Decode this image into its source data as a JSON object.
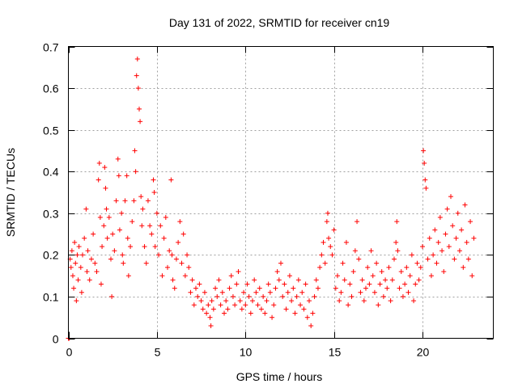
{
  "chart_data": {
    "type": "scatter",
    "title": "Day 131 of 2022, SRMTID for receiver cn19",
    "xlabel": "GPS time / hours",
    "ylabel": "SRMTID / TECUs",
    "xlim": [
      0,
      24
    ],
    "ylim": [
      0,
      0.7
    ],
    "xticks": [
      0,
      5,
      10,
      15,
      20
    ],
    "yticks": [
      0,
      0.1,
      0.2,
      0.3,
      0.4,
      0.5,
      0.6,
      0.7
    ],
    "xtick_labels": [
      "0",
      "5",
      "10",
      "15",
      "20"
    ],
    "ytick_labels": [
      "0",
      "0.1",
      "0.2",
      "0.3",
      "0.4",
      "0.5",
      "0.6",
      "0.7"
    ],
    "grid": true,
    "marker": "+",
    "color": "#ff0000",
    "series": [
      {
        "name": "SRMTID",
        "points": [
          [
            0.0,
            0.0
          ],
          [
            0.05,
            0.0
          ],
          [
            0.1,
            0.19
          ],
          [
            0.15,
            0.17
          ],
          [
            0.2,
            0.21
          ],
          [
            0.25,
            0.15
          ],
          [
            0.3,
            0.12
          ],
          [
            0.35,
            0.23
          ],
          [
            0.4,
            0.18
          ],
          [
            0.45,
            0.09
          ],
          [
            0.5,
            0.2
          ],
          [
            0.55,
            0.14
          ],
          [
            0.6,
            0.22
          ],
          [
            0.7,
            0.17
          ],
          [
            0.75,
            0.11
          ],
          [
            0.8,
            0.2
          ],
          [
            0.9,
            0.24
          ],
          [
            1.0,
            0.31
          ],
          [
            1.05,
            0.16
          ],
          [
            1.1,
            0.21
          ],
          [
            1.2,
            0.14
          ],
          [
            1.3,
            0.19
          ],
          [
            1.4,
            0.25
          ],
          [
            1.5,
            0.18
          ],
          [
            1.6,
            0.16
          ],
          [
            1.7,
            0.38
          ],
          [
            1.75,
            0.42
          ],
          [
            1.8,
            0.29
          ],
          [
            1.85,
            0.13
          ],
          [
            1.9,
            0.22
          ],
          [
            2.0,
            0.27
          ],
          [
            2.05,
            0.41
          ],
          [
            2.1,
            0.36
          ],
          [
            2.15,
            0.31
          ],
          [
            2.2,
            0.24
          ],
          [
            2.3,
            0.29
          ],
          [
            2.4,
            0.19
          ],
          [
            2.45,
            0.1
          ],
          [
            2.5,
            0.25
          ],
          [
            2.6,
            0.21
          ],
          [
            2.7,
            0.33
          ],
          [
            2.8,
            0.43
          ],
          [
            2.85,
            0.39
          ],
          [
            2.9,
            0.26
          ],
          [
            3.0,
            0.3
          ],
          [
            3.05,
            0.2
          ],
          [
            3.1,
            0.18
          ],
          [
            3.2,
            0.33
          ],
          [
            3.3,
            0.39
          ],
          [
            3.35,
            0.24
          ],
          [
            3.4,
            0.15
          ],
          [
            3.5,
            0.22
          ],
          [
            3.6,
            0.28
          ],
          [
            3.7,
            0.33
          ],
          [
            3.75,
            0.45
          ],
          [
            3.8,
            0.4
          ],
          [
            3.85,
            0.63
          ],
          [
            3.9,
            0.67
          ],
          [
            3.95,
            0.6
          ],
          [
            4.0,
            0.55
          ],
          [
            4.05,
            0.52
          ],
          [
            4.1,
            0.34
          ],
          [
            4.15,
            0.27
          ],
          [
            4.2,
            0.31
          ],
          [
            4.3,
            0.22
          ],
          [
            4.4,
            0.18
          ],
          [
            4.5,
            0.33
          ],
          [
            4.6,
            0.27
          ],
          [
            4.7,
            0.25
          ],
          [
            4.8,
            0.38
          ],
          [
            4.85,
            0.35
          ],
          [
            4.9,
            0.22
          ],
          [
            5.0,
            0.3
          ],
          [
            5.1,
            0.2
          ],
          [
            5.2,
            0.27
          ],
          [
            5.3,
            0.15
          ],
          [
            5.4,
            0.24
          ],
          [
            5.5,
            0.29
          ],
          [
            5.6,
            0.17
          ],
          [
            5.7,
            0.21
          ],
          [
            5.8,
            0.38
          ],
          [
            5.85,
            0.2
          ],
          [
            5.9,
            0.14
          ],
          [
            6.0,
            0.12
          ],
          [
            6.1,
            0.19
          ],
          [
            6.2,
            0.23
          ],
          [
            6.3,
            0.28
          ],
          [
            6.4,
            0.18
          ],
          [
            6.5,
            0.25
          ],
          [
            6.6,
            0.15
          ],
          [
            6.7,
            0.2
          ],
          [
            6.8,
            0.17
          ],
          [
            6.9,
            0.11
          ],
          [
            7.0,
            0.14
          ],
          [
            7.1,
            0.08
          ],
          [
            7.2,
            0.12
          ],
          [
            7.3,
            0.1
          ],
          [
            7.4,
            0.13
          ],
          [
            7.5,
            0.09
          ],
          [
            7.6,
            0.07
          ],
          [
            7.7,
            0.11
          ],
          [
            7.8,
            0.06
          ],
          [
            7.9,
            0.08
          ],
          [
            8.0,
            0.05
          ],
          [
            8.05,
            0.03
          ],
          [
            8.1,
            0.09
          ],
          [
            8.2,
            0.07
          ],
          [
            8.3,
            0.12
          ],
          [
            8.4,
            0.1
          ],
          [
            8.5,
            0.14
          ],
          [
            8.6,
            0.08
          ],
          [
            8.7,
            0.11
          ],
          [
            8.8,
            0.06
          ],
          [
            8.9,
            0.09
          ],
          [
            9.0,
            0.07
          ],
          [
            9.1,
            0.12
          ],
          [
            9.2,
            0.15
          ],
          [
            9.3,
            0.1
          ],
          [
            9.4,
            0.08
          ],
          [
            9.5,
            0.13
          ],
          [
            9.6,
            0.16
          ],
          [
            9.7,
            0.09
          ],
          [
            9.8,
            0.07
          ],
          [
            9.9,
            0.11
          ],
          [
            10.0,
            0.08
          ],
          [
            10.1,
            0.13
          ],
          [
            10.2,
            0.1
          ],
          [
            10.3,
            0.06
          ],
          [
            10.4,
            0.09
          ],
          [
            10.5,
            0.14
          ],
          [
            10.6,
            0.11
          ],
          [
            10.7,
            0.08
          ],
          [
            10.8,
            0.12
          ],
          [
            10.9,
            0.07
          ],
          [
            11.0,
            0.1
          ],
          [
            11.1,
            0.06
          ],
          [
            11.2,
            0.09
          ],
          [
            11.3,
            0.13
          ],
          [
            11.4,
            0.11
          ],
          [
            11.5,
            0.05
          ],
          [
            11.6,
            0.08
          ],
          [
            11.7,
            0.12
          ],
          [
            11.8,
            0.16
          ],
          [
            11.9,
            0.14
          ],
          [
            12.0,
            0.18
          ],
          [
            12.1,
            0.1
          ],
          [
            12.2,
            0.13
          ],
          [
            12.3,
            0.07
          ],
          [
            12.4,
            0.11
          ],
          [
            12.5,
            0.15
          ],
          [
            12.6,
            0.09
          ],
          [
            12.7,
            0.12
          ],
          [
            12.8,
            0.06
          ],
          [
            12.9,
            0.1
          ],
          [
            13.0,
            0.14
          ],
          [
            13.1,
            0.08
          ],
          [
            13.2,
            0.11
          ],
          [
            13.3,
            0.07
          ],
          [
            13.4,
            0.13
          ],
          [
            13.5,
            0.05
          ],
          [
            13.6,
            0.09
          ],
          [
            13.7,
            0.03
          ],
          [
            13.8,
            0.06
          ],
          [
            13.9,
            0.1
          ],
          [
            14.0,
            0.14
          ],
          [
            14.1,
            0.12
          ],
          [
            14.2,
            0.17
          ],
          [
            14.3,
            0.2
          ],
          [
            14.4,
            0.23
          ],
          [
            14.5,
            0.18
          ],
          [
            14.6,
            0.28
          ],
          [
            14.65,
            0.3
          ],
          [
            14.7,
            0.24
          ],
          [
            14.8,
            0.22
          ],
          [
            14.9,
            0.2
          ],
          [
            15.0,
            0.26
          ],
          [
            15.1,
            0.12
          ],
          [
            15.2,
            0.15
          ],
          [
            15.3,
            0.09
          ],
          [
            15.4,
            0.11
          ],
          [
            15.5,
            0.18
          ],
          [
            15.6,
            0.14
          ],
          [
            15.7,
            0.23
          ],
          [
            15.8,
            0.08
          ],
          [
            15.9,
            0.13
          ],
          [
            16.0,
            0.1
          ],
          [
            16.1,
            0.16
          ],
          [
            16.2,
            0.21
          ],
          [
            16.3,
            0.28
          ],
          [
            16.4,
            0.19
          ],
          [
            16.5,
            0.11
          ],
          [
            16.6,
            0.14
          ],
          [
            16.7,
            0.09
          ],
          [
            16.8,
            0.12
          ],
          [
            16.9,
            0.17
          ],
          [
            17.0,
            0.13
          ],
          [
            17.1,
            0.21
          ],
          [
            17.2,
            0.15
          ],
          [
            17.3,
            0.11
          ],
          [
            17.4,
            0.18
          ],
          [
            17.5,
            0.08
          ],
          [
            17.6,
            0.13
          ],
          [
            17.7,
            0.16
          ],
          [
            17.8,
            0.1
          ],
          [
            17.9,
            0.14
          ],
          [
            18.0,
            0.12
          ],
          [
            18.1,
            0.17
          ],
          [
            18.2,
            0.09
          ],
          [
            18.3,
            0.14
          ],
          [
            18.4,
            0.19
          ],
          [
            18.5,
            0.23
          ],
          [
            18.55,
            0.28
          ],
          [
            18.6,
            0.21
          ],
          [
            18.7,
            0.12
          ],
          [
            18.8,
            0.16
          ],
          [
            18.9,
            0.1
          ],
          [
            19.0,
            0.13
          ],
          [
            19.1,
            0.17
          ],
          [
            19.2,
            0.11
          ],
          [
            19.3,
            0.15
          ],
          [
            19.4,
            0.2
          ],
          [
            19.5,
            0.09
          ],
          [
            19.6,
            0.13
          ],
          [
            19.7,
            0.18
          ],
          [
            19.8,
            0.14
          ],
          [
            19.9,
            0.17
          ],
          [
            20.0,
            0.22
          ],
          [
            20.05,
            0.45
          ],
          [
            20.1,
            0.42
          ],
          [
            20.15,
            0.38
          ],
          [
            20.2,
            0.36
          ],
          [
            20.3,
            0.19
          ],
          [
            20.4,
            0.24
          ],
          [
            20.5,
            0.15
          ],
          [
            20.6,
            0.2
          ],
          [
            20.7,
            0.26
          ],
          [
            20.8,
            0.18
          ],
          [
            20.9,
            0.23
          ],
          [
            21.0,
            0.29
          ],
          [
            21.1,
            0.21
          ],
          [
            21.2,
            0.16
          ],
          [
            21.3,
            0.25
          ],
          [
            21.4,
            0.31
          ],
          [
            21.5,
            0.22
          ],
          [
            21.6,
            0.34
          ],
          [
            21.7,
            0.27
          ],
          [
            21.8,
            0.19
          ],
          [
            21.9,
            0.24
          ],
          [
            22.0,
            0.3
          ],
          [
            22.1,
            0.21
          ],
          [
            22.2,
            0.26
          ],
          [
            22.3,
            0.17
          ],
          [
            22.4,
            0.32
          ],
          [
            22.5,
            0.23
          ],
          [
            22.6,
            0.19
          ],
          [
            22.7,
            0.28
          ],
          [
            22.8,
            0.15
          ],
          [
            22.9,
            0.24
          ]
        ]
      }
    ]
  }
}
